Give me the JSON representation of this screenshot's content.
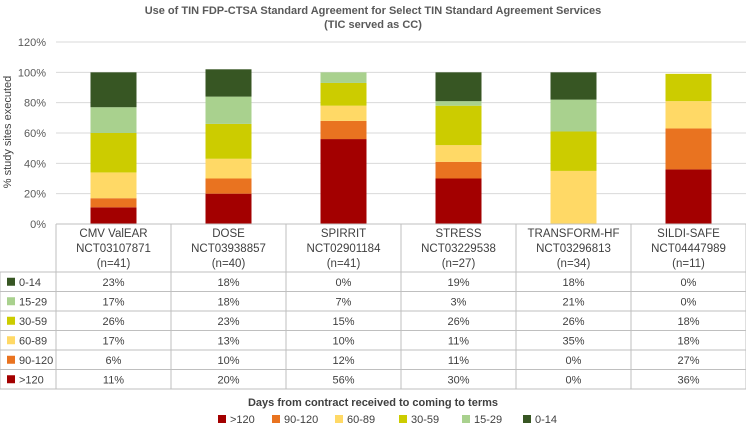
{
  "chart_data": {
    "type": "bar",
    "stacked": true,
    "title_line1": "Use of TIN FDP-CTSA Standard Agreement for Select TIN Standard Agreement Services",
    "title_line2": "(TIC served as CC)",
    "ylabel": "% study sites executed",
    "xlabel": "Days from contract received to coming to terms",
    "ylim": [
      0,
      120
    ],
    "yticks": [
      "0%",
      "20%",
      "40%",
      "60%",
      "80%",
      "100%",
      "120%"
    ],
    "categories": [
      {
        "name": "CMV ValEAR",
        "id": "NCT03107871",
        "n": "(n=41)"
      },
      {
        "name": "DOSE",
        "id": "NCT03938857",
        "n": "(n=40)"
      },
      {
        "name": "SPIRRIT",
        "id": "NCT02901184",
        "n": "(n=41)"
      },
      {
        "name": "STRESS",
        "id": "NCT03229538",
        "n": "(n=27)"
      },
      {
        "name": "TRANSFORM-HF",
        "id": "NCT03296813",
        "n": "(n=34)"
      },
      {
        "name": "SILDI-SAFE",
        "id": "NCT04447989",
        "n": "(n=11)"
      }
    ],
    "series": [
      {
        "name": "0-14",
        "color": "#375623",
        "values": [
          23,
          18,
          0,
          19,
          18,
          0
        ],
        "labels": [
          "23%",
          "18%",
          "0%",
          "19%",
          "18%",
          "0%"
        ]
      },
      {
        "name": "15-29",
        "color": "#a9d18e",
        "values": [
          17,
          18,
          7,
          3,
          21,
          0
        ],
        "labels": [
          "17%",
          "18%",
          "7%",
          "3%",
          "21%",
          "0%"
        ]
      },
      {
        "name": "30-59",
        "color": "#cccc00",
        "values": [
          26,
          23,
          15,
          26,
          26,
          18
        ],
        "labels": [
          "26%",
          "23%",
          "15%",
          "26%",
          "26%",
          "18%"
        ]
      },
      {
        "name": "60-89",
        "color": "#ffd966",
        "values": [
          17,
          13,
          10,
          11,
          35,
          18
        ],
        "labels": [
          "17%",
          "13%",
          "10%",
          "11%",
          "35%",
          "18%"
        ]
      },
      {
        "name": "90-120",
        "color": "#e97320",
        "values": [
          6,
          10,
          12,
          11,
          0,
          27
        ],
        "labels": [
          "6%",
          "10%",
          "12%",
          "11%",
          "0%",
          "27%"
        ]
      },
      {
        "name": ">120",
        "color": "#a30000",
        "values": [
          11,
          20,
          56,
          30,
          0,
          36
        ],
        "labels": [
          "11%",
          "20%",
          "56%",
          "30%",
          "0%",
          "36%"
        ]
      }
    ],
    "legend_order": [
      ">120",
      "90-120",
      "60-89",
      "30-59",
      "15-29",
      "0-14"
    ],
    "grid": true,
    "legend_position": "bottom"
  }
}
